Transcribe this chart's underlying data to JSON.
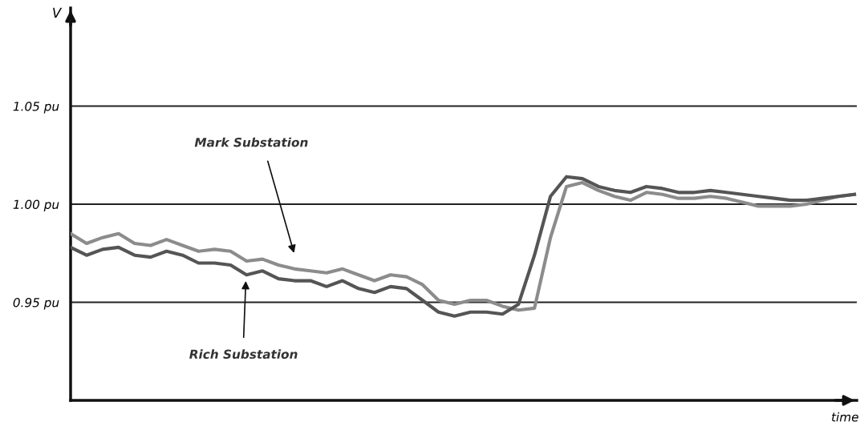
{
  "chart_data": {
    "type": "line",
    "xlabel": "time",
    "ylabel": "V",
    "categories": [
      null,
      null,
      null,
      null,
      null,
      null,
      null,
      null,
      null,
      null,
      null,
      null,
      null,
      null,
      null,
      null,
      null,
      null,
      null,
      null,
      null,
      null,
      null,
      null,
      null,
      null,
      null,
      null,
      null,
      null,
      null,
      null,
      null,
      null,
      null,
      null,
      null,
      null,
      null,
      null,
      null,
      null,
      null,
      null,
      null,
      null,
      null,
      null,
      null,
      null
    ],
    "series": [
      {
        "color": "#8c8c8c",
        "values": [
          0.985,
          0.98,
          0.983,
          0.985,
          0.98,
          0.979,
          0.982,
          0.979,
          0.976,
          0.977,
          0.976,
          0.971,
          0.972,
          0.969,
          0.967,
          0.966,
          0.965,
          0.967,
          0.964,
          0.961,
          0.964,
          0.963,
          0.959,
          0.951,
          0.949,
          0.951,
          0.951,
          0.948,
          0.946,
          0.947,
          0.983,
          1.009,
          1.011,
          1.007,
          1.004,
          1.002,
          1.006,
          1.005,
          1.003,
          1.003,
          1.004,
          1.003,
          1.001,
          0.999,
          0.999,
          0.999,
          1.0,
          1.002,
          1.004,
          1.005
        ]
      },
      {
        "color": "#555555",
        "values": [
          0.978,
          0.974,
          0.977,
          0.978,
          0.974,
          0.973,
          0.976,
          0.974,
          0.97,
          0.97,
          0.969,
          0.964,
          0.966,
          0.962,
          0.961,
          0.961,
          0.958,
          0.961,
          0.957,
          0.955,
          0.958,
          0.957,
          0.951,
          0.945,
          0.943,
          0.945,
          0.945,
          0.944,
          0.949,
          0.974,
          1.004,
          1.014,
          1.013,
          1.009,
          1.007,
          1.006,
          1.009,
          1.008,
          1.006,
          1.006,
          1.007,
          1.006,
          1.005,
          1.004,
          1.003,
          1.002,
          1.002,
          1.003,
          1.004,
          1.005
        ]
      }
    ],
    "ylim": [
      0.9,
      1.1
    ],
    "yticks": [
      {
        "value": 0.95,
        "label": "0.95 pu"
      },
      {
        "value": 1.0,
        "label": "1.00 pu"
      },
      {
        "value": 1.05,
        "label": "1.05 pu"
      }
    ],
    "grid": "y",
    "tick_labels": "y",
    "marker": "none",
    "line_style": "solid",
    "annotations": [
      "Mark Substation",
      "Rich Substation"
    ]
  }
}
